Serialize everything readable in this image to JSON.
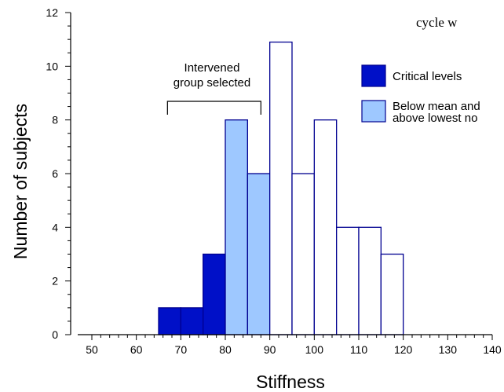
{
  "chart_data": {
    "type": "bar",
    "top_text": "cycle w",
    "xlabel": "Stiffness",
    "ylabel": "Number of subjects",
    "xlim": [
      50,
      140
    ],
    "ylim": [
      0,
      12
    ],
    "x_ticks": [
      "50",
      "60",
      "70",
      "80",
      "90",
      "100",
      "110",
      "120",
      "130",
      "140"
    ],
    "y_ticks": [
      "0",
      "2",
      "4",
      "6",
      "8",
      "10",
      "12"
    ],
    "bin_width": 5,
    "bins": [
      {
        "start": 65,
        "value": 1,
        "group": "critical"
      },
      {
        "start": 70,
        "value": 1,
        "group": "critical"
      },
      {
        "start": 75,
        "value": 3,
        "group": "critical"
      },
      {
        "start": 80,
        "value": 8,
        "group": "below"
      },
      {
        "start": 85,
        "value": 6,
        "group": "below"
      },
      {
        "start": 90,
        "value": 10.9,
        "group": "other"
      },
      {
        "start": 95,
        "value": 6,
        "group": "other"
      },
      {
        "start": 100,
        "value": 8,
        "group": "other"
      },
      {
        "start": 105,
        "value": 4,
        "group": "other"
      },
      {
        "start": 110,
        "value": 4,
        "group": "other"
      },
      {
        "start": 115,
        "value": 3,
        "group": "other"
      }
    ],
    "legend": [
      {
        "key": "critical",
        "lines": [
          "Critical levels"
        ]
      },
      {
        "key": "below",
        "lines": [
          "Below mean and",
          "above lowest no"
        ]
      }
    ],
    "annotation": {
      "lines": [
        "Intervened",
        "group selected"
      ],
      "x_from": 67,
      "x_to": 88
    },
    "colors": {
      "critical": "#0010c8",
      "below": "#9ec8ff",
      "other": "#ffffff",
      "edge": "#000090"
    }
  }
}
